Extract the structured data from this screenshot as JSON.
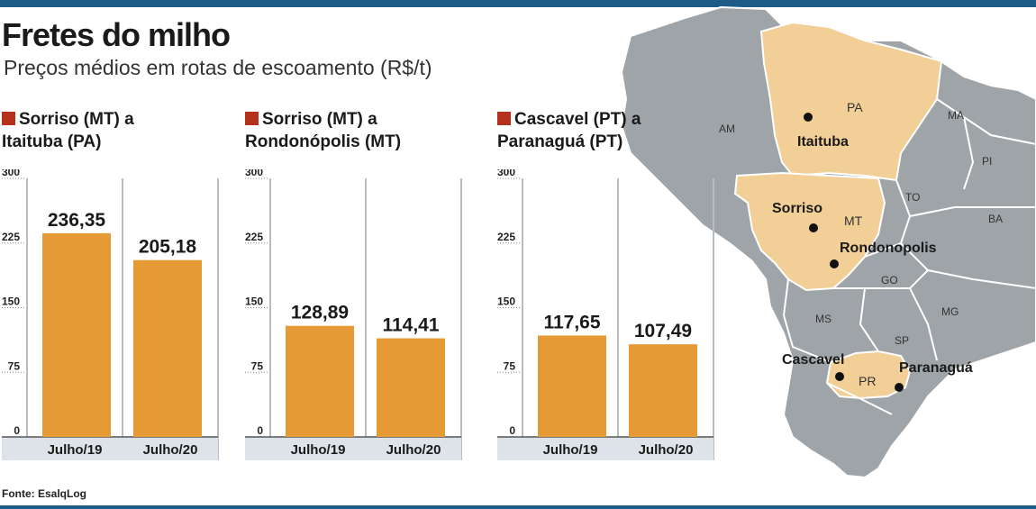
{
  "header": {
    "title": "Fretes do milho",
    "subtitle": "Preços médios em rotas de escoamento (R$/t)"
  },
  "source": "Fonte: EsalqLog",
  "colors": {
    "bar": "#e69a35",
    "accent": "#b5311c",
    "highlight_state": "#f2cf97",
    "map_gray": "#9fa4a8"
  },
  "chart_data": [
    {
      "type": "bar",
      "title": [
        "Sorriso (MT) a",
        "Itaituba (PA)"
      ],
      "categories": [
        "Julho/19",
        "Julho/20"
      ],
      "values": [
        236.35,
        205.18
      ],
      "value_labels": [
        "236,35",
        "205,18"
      ],
      "yticks": [
        "0",
        "75",
        "150",
        "225",
        "300"
      ],
      "ylim": [
        0,
        300
      ],
      "grid": true
    },
    {
      "type": "bar",
      "title": [
        "Sorriso (MT) a",
        "Rondonópolis (MT)"
      ],
      "categories": [
        "Julho/19",
        "Julho/20"
      ],
      "values": [
        128.89,
        114.41
      ],
      "value_labels": [
        "128,89",
        "114,41"
      ],
      "yticks": [
        "0",
        "75",
        "150",
        "225",
        "300"
      ],
      "ylim": [
        0,
        300
      ],
      "grid": true
    },
    {
      "type": "bar",
      "title": [
        "Cascavel (PT) a",
        "Paranaguá (PT)"
      ],
      "categories": [
        "Julho/19",
        "Julho/20"
      ],
      "values": [
        117.65,
        107.49
      ],
      "value_labels": [
        "117,65",
        "107,49"
      ],
      "yticks": [
        "0",
        "75",
        "150",
        "225",
        "300"
      ],
      "ylim": [
        0,
        300
      ],
      "grid": true
    }
  ],
  "map": {
    "states": [
      "AM",
      "PA",
      "MA",
      "PI",
      "TO",
      "BA",
      "MT",
      "GO",
      "MG",
      "MS",
      "SP",
      "PR"
    ],
    "cities": [
      "Itaituba",
      "Sorriso",
      "Rondonopolis",
      "Cascavel",
      "Paranaguá"
    ]
  }
}
